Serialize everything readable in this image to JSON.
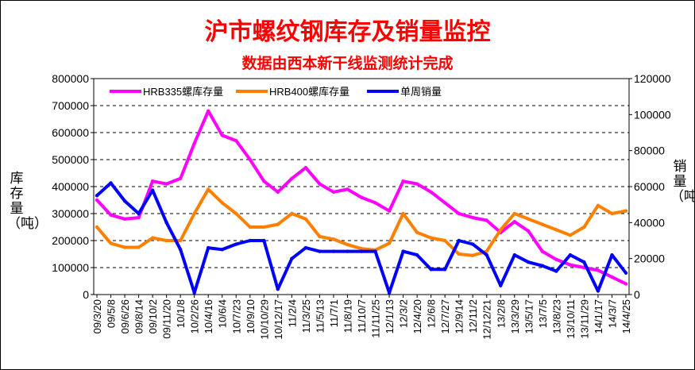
{
  "chart_data": {
    "type": "line",
    "title": "沪市螺纹钢库存及销量监控",
    "subtitle": "数据由西本新干线监测统计完成",
    "ylabel_left": "库存量（吨）",
    "ylabel_right": "销量（吨）",
    "ylim_left": [
      0,
      800000
    ],
    "ylim_right": [
      0,
      120000
    ],
    "yticks_left": [
      "0",
      "100000",
      "200000",
      "300000",
      "400000",
      "500000",
      "600000",
      "700000",
      "800000"
    ],
    "yticks_right": [
      "0",
      "20000",
      "40000",
      "60000",
      "80000",
      "100000",
      "120000"
    ],
    "legend_position": "top-left",
    "categories": [
      "09/3/20",
      "09/5/8",
      "09/6/26",
      "09/8/14",
      "09/10/2",
      "09/11/20",
      "10/1/8",
      "10/2/26",
      "10/4/16",
      "10/6/4",
      "10/7/23",
      "10/9/10",
      "10/10/29",
      "10/12/17",
      "11/2/4",
      "11/3/25",
      "11/5/13",
      "11/7/1",
      "11/8/19",
      "11/10/7",
      "11/11/25",
      "12/1/13",
      "12/3/2",
      "12/4/20",
      "12/6/8",
      "12/7/27",
      "12/9/14",
      "12/11/2",
      "12/12/21",
      "13/2/8",
      "13/3/29",
      "13/5/17",
      "13/7/5",
      "13/8/23",
      "13/10/11",
      "13/11/29",
      "14/1/17",
      "14/3/7",
      "14/4/25"
    ],
    "series": [
      {
        "name": "HRB335螺库存量",
        "axis": "left",
        "color": "#ff00ff",
        "values": [
          350000,
          295000,
          280000,
          285000,
          420000,
          410000,
          430000,
          560000,
          680000,
          590000,
          570000,
          500000,
          420000,
          380000,
          430000,
          470000,
          410000,
          380000,
          390000,
          360000,
          340000,
          310000,
          420000,
          410000,
          380000,
          340000,
          300000,
          285000,
          275000,
          230000,
          270000,
          235000,
          160000,
          130000,
          110000,
          100000,
          90000,
          65000,
          40000
        ]
      },
      {
        "name": "HRB400螺库存量",
        "axis": "left",
        "color": "#ff7f00",
        "values": [
          250000,
          190000,
          175000,
          175000,
          210000,
          200000,
          200000,
          300000,
          390000,
          340000,
          300000,
          250000,
          250000,
          260000,
          300000,
          280000,
          215000,
          205000,
          185000,
          170000,
          165000,
          190000,
          300000,
          230000,
          210000,
          200000,
          150000,
          145000,
          160000,
          240000,
          300000,
          280000,
          260000,
          240000,
          220000,
          250000,
          330000,
          300000,
          310000
        ]
      },
      {
        "name": "单周销量",
        "axis": "right",
        "color": "#0000ff",
        "values": [
          55000,
          62000,
          52000,
          45000,
          58000,
          40000,
          25000,
          1000,
          26000,
          25000,
          28000,
          30000,
          30000,
          3000,
          20000,
          26000,
          24000,
          24000,
          24000,
          24000,
          24000,
          1000,
          24000,
          22000,
          14000,
          14000,
          30000,
          28000,
          22000,
          5000,
          22000,
          18000,
          16000,
          13000,
          22000,
          18000,
          2000,
          22000,
          12000
        ]
      }
    ]
  }
}
